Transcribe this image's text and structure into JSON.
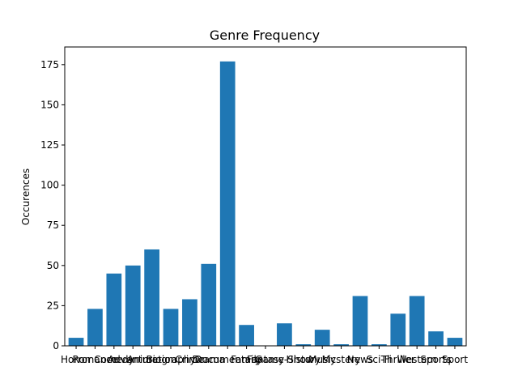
{
  "chart_data": {
    "type": "bar",
    "title": "Genre Frequency",
    "xlabel": "",
    "ylabel": "Occurences",
    "ylim": [
      0,
      186
    ],
    "yticks": [
      0,
      25,
      50,
      75,
      100,
      125,
      150,
      175
    ],
    "grid": false,
    "categories": [
      "Horror",
      "Romance",
      "Comedy",
      "Adventure",
      "Animation",
      "Biography",
      "Crime",
      "Drama",
      "Documentary",
      "Family",
      "Fantasy",
      "Game-Show",
      "History",
      "Music",
      "Mystery",
      "News",
      "Sci-Fi",
      "Thriller",
      "Western",
      "Sports",
      "Sport"
    ],
    "values": [
      5,
      23,
      45,
      50,
      60,
      23,
      29,
      51,
      177,
      13,
      0,
      14,
      1,
      10,
      1,
      31,
      1,
      20,
      31,
      9,
      5
    ],
    "colors": {
      "bar": "#1f77b4",
      "axis": "#000000",
      "background": "#ffffff"
    }
  }
}
